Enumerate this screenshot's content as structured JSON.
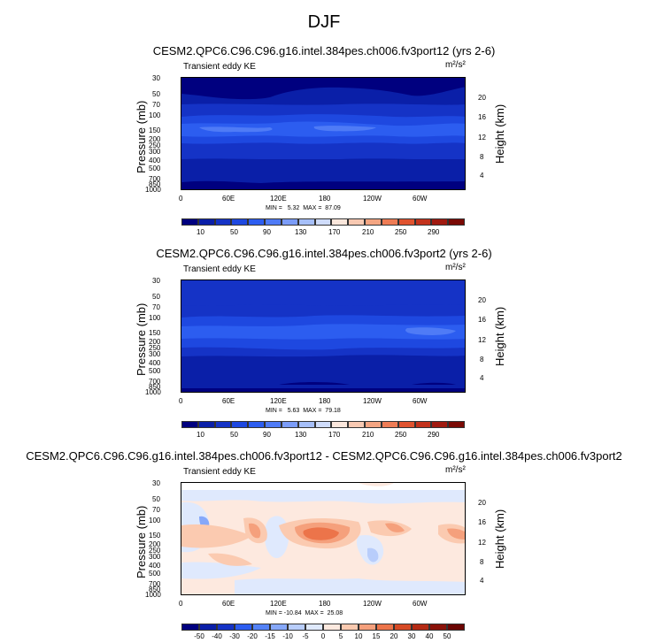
{
  "figure": {
    "title": "DJF",
    "colors": {
      "dark_navy": "#00007f",
      "navy": "#0a1fa8",
      "blue": "#1b3fd6",
      "mid_blue": "#2c5df0",
      "light_blue": "#4f84ff",
      "pale_blue": "#cfe3ff",
      "white": "#ffffff",
      "peach": "#fde0cc",
      "salmon": "#f7a98a",
      "orange_red": "#ee6a43"
    }
  },
  "chart_data": [
    {
      "type": "heatmap",
      "title": "CESM2.QPC6.C96.C96.g16.intel.384pes.ch006.fv3port12 (yrs 2-6)",
      "subtitle_left": "Transient eddy KE",
      "units": "m²/s²",
      "ylabel": "Pressure (mb)",
      "ylabel_right": "Height (km)",
      "x_ticks": [
        "0",
        "60E",
        "120E",
        "180",
        "120W",
        "60W"
      ],
      "y_ticks": [
        "30",
        "50",
        "70",
        "100",
        "150",
        "200",
        "250",
        "300",
        "400",
        "500",
        "700",
        "850",
        "1000"
      ],
      "height_ticks": [
        "20",
        "16",
        "12",
        "8",
        "4"
      ],
      "min_max": "MIN =   5.32  MAX =  87.09",
      "min": 5.32,
      "max": 87.09,
      "colorbar_labels": [
        "10",
        "50",
        "90",
        "130",
        "170",
        "210",
        "250",
        "290"
      ]
    },
    {
      "type": "heatmap",
      "title": "CESM2.QPC6.C96.C96.g16.intel.384pes.ch006.fv3port2 (yrs 2-6)",
      "subtitle_left": "Transient eddy KE",
      "units": "m²/s²",
      "ylabel": "Pressure (mb)",
      "ylabel_right": "Height (km)",
      "x_ticks": [
        "0",
        "60E",
        "120E",
        "180",
        "120W",
        "60W"
      ],
      "y_ticks": [
        "30",
        "50",
        "70",
        "100",
        "150",
        "200",
        "250",
        "300",
        "400",
        "500",
        "700",
        "850",
        "1000"
      ],
      "height_ticks": [
        "20",
        "16",
        "12",
        "8",
        "4"
      ],
      "min_max": "MIN =   5.63  MAX =  79.18",
      "min": 5.63,
      "max": 79.18,
      "colorbar_labels": [
        "10",
        "50",
        "90",
        "130",
        "170",
        "210",
        "250",
        "290"
      ]
    },
    {
      "type": "heatmap",
      "title": "CESM2.QPC6.C96.C96.g16.intel.384pes.ch006.fv3port12 - CESM2.QPC6.C96.C96.g16.intel.384pes.ch006.fv3port2",
      "subtitle_left": "Transient eddy KE",
      "units": "m²/s²",
      "ylabel": "Pressure (mb)",
      "ylabel_right": "Height (km)",
      "x_ticks": [
        "0",
        "60E",
        "120E",
        "180",
        "120W",
        "60W"
      ],
      "y_ticks": [
        "30",
        "50",
        "70",
        "100",
        "150",
        "200",
        "250",
        "300",
        "400",
        "500",
        "700",
        "850",
        "1000"
      ],
      "height_ticks": [
        "20",
        "16",
        "12",
        "8",
        "4"
      ],
      "min_max": "MIN = -10.84  MAX =  25.08",
      "min": -10.84,
      "max": 25.08,
      "colorbar_labels": [
        "-50",
        "-40",
        "-30",
        "-20",
        "-15",
        "-10",
        "-5",
        "0",
        "5",
        "10",
        "15",
        "20",
        "30",
        "40",
        "50"
      ]
    }
  ],
  "colorbars": {
    "sequential": [
      "#00007f",
      "#0a1fa8",
      "#1533c6",
      "#1e48e0",
      "#2c5df0",
      "#4f7bf6",
      "#7b9cf8",
      "#a6bff9",
      "#cfdcfb",
      "#fbe7dc",
      "#f8c9b2",
      "#f4a582",
      "#ee7c55",
      "#e0532f",
      "#c3321c",
      "#a01a10",
      "#7a0a05"
    ],
    "diverging": [
      "#00007f",
      "#0a1fa8",
      "#1533c6",
      "#2c5df0",
      "#5382f7",
      "#86a8fa",
      "#b8cdfb",
      "#dfe9fd",
      "#fde9df",
      "#fbcab0",
      "#f5a07c",
      "#ec744a",
      "#d64a25",
      "#b42a14",
      "#8a1209",
      "#6b0503"
    ]
  }
}
